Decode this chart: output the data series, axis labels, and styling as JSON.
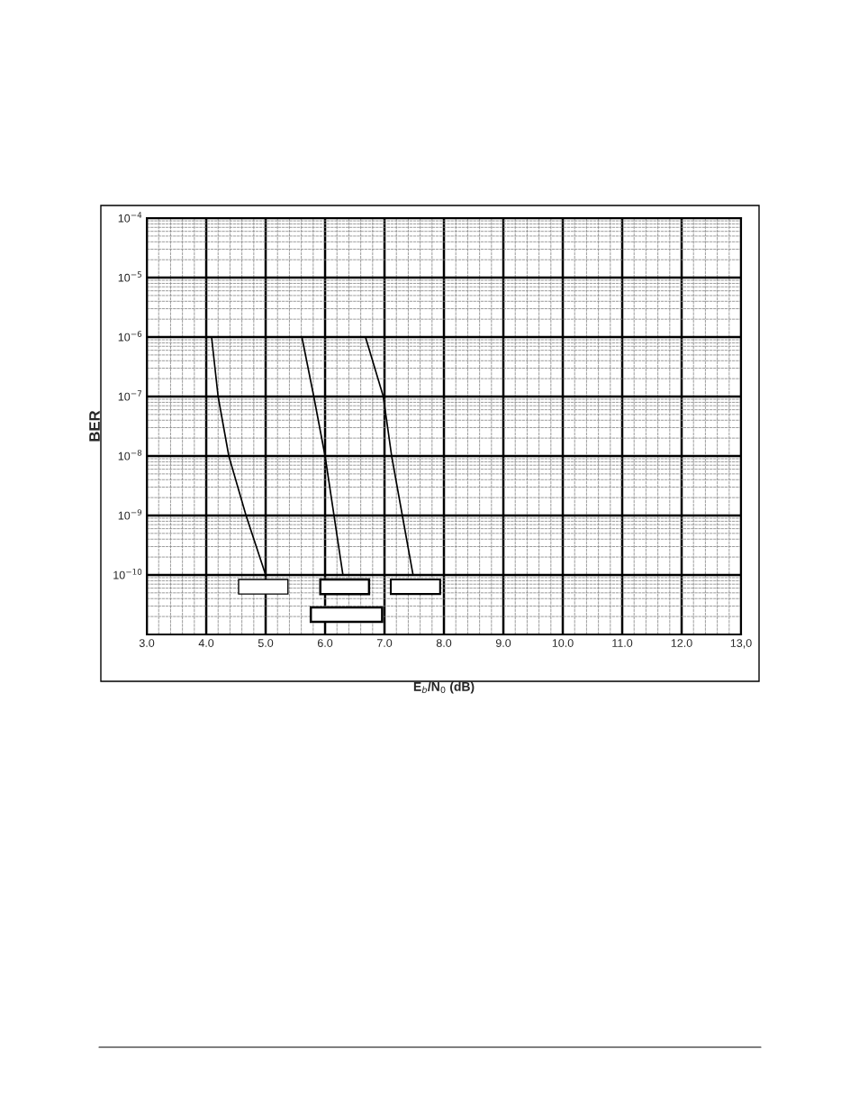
{
  "chart_data": {
    "type": "line",
    "xlabel": "E$_{b}$/N$_{0}$ (dB)",
    "ylabel": "BER",
    "series": [
      {
        "color": "#000000",
        "x": [
          4.09,
          4.2,
          4.38,
          4.67,
          5.0
        ],
        "values": [
          1e-06,
          1e-07,
          1e-08,
          1e-09,
          1e-10
        ]
      },
      {
        "color": "#000000",
        "x": [
          5.61,
          5.81,
          6.0,
          6.15,
          6.3
        ],
        "values": [
          1e-06,
          1e-07,
          1e-08,
          1e-09,
          1e-10
        ]
      },
      {
        "color": "#000000",
        "x": [
          6.68,
          6.98,
          7.12,
          7.3,
          7.48
        ],
        "values": [
          1e-06,
          1e-07,
          1e-08,
          1e-09,
          1e-10
        ]
      }
    ],
    "log": "y",
    "xlim": [
      3,
      13
    ],
    "ylim": [
      1e-11,
      0.0001
    ],
    "xticks": [
      {
        "value": 3,
        "label": "3.0"
      },
      {
        "value": 4,
        "label": "4.0"
      },
      {
        "value": 5,
        "label": "5.0"
      },
      {
        "value": 6,
        "label": "6.0"
      },
      {
        "value": 7,
        "label": "7.0"
      },
      {
        "value": 8,
        "label": "8.0"
      },
      {
        "value": 9,
        "label": "9.0"
      },
      {
        "value": 10,
        "label": "10.0"
      },
      {
        "value": 11,
        "label": "11.0"
      },
      {
        "value": 12,
        "label": "12.0"
      },
      {
        "value": 13,
        "label": "13,0"
      }
    ],
    "yticks": [
      {
        "value": 1e-10,
        "label": "10$^{−10}$"
      },
      {
        "value": 1e-09,
        "label": "10$^{−9}$"
      },
      {
        "value": 1e-08,
        "label": "10$^{−8}$"
      },
      {
        "value": 1e-07,
        "label": "10$^{−7}$"
      },
      {
        "value": 1e-06,
        "label": "10$^{−6}$"
      },
      {
        "value": 1e-05,
        "label": "10$^{−5}$"
      },
      {
        "value": 0.0001,
        "label": "10$^{−4}$"
      }
    ],
    "grid": true,
    "marker": "none",
    "line_style": "solid",
    "legend": false
  }
}
